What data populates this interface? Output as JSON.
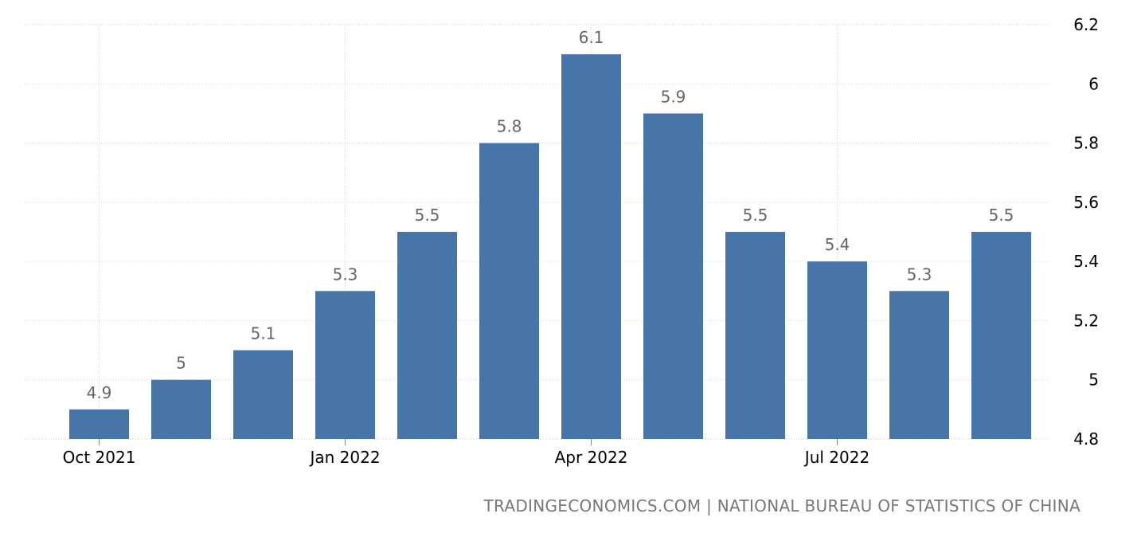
{
  "chart_data": {
    "type": "bar",
    "categories": [
      "Oct 2021",
      "Nov 2021",
      "Dec 2021",
      "Jan 2022",
      "Feb 2022",
      "Mar 2022",
      "Apr 2022",
      "May 2022",
      "Jun 2022",
      "Jul 2022",
      "Aug 2022",
      "Sep 2022"
    ],
    "values": [
      4.9,
      5.0,
      5.1,
      5.3,
      5.5,
      5.8,
      6.1,
      5.9,
      5.5,
      5.4,
      5.3,
      5.5
    ],
    "data_labels": [
      "4.9",
      "5",
      "5.1",
      "5.3",
      "5.5",
      "5.8",
      "6.1",
      "5.9",
      "5.5",
      "5.4",
      "5.3",
      "5.5"
    ],
    "x_tick_labels": [
      {
        "category": "Oct 2021",
        "label": "Oct 2021"
      },
      {
        "category": "Jan 2022",
        "label": "Jan 2022"
      },
      {
        "category": "Apr 2022",
        "label": "Apr 2022"
      },
      {
        "category": "Jul 2022",
        "label": "Jul 2022"
      }
    ],
    "y_ticks": [
      4.8,
      5.0,
      5.2,
      5.4,
      5.6,
      5.8,
      6.0,
      6.2
    ],
    "y_tick_labels": [
      "4.8",
      "5",
      "5.2",
      "5.4",
      "5.6",
      "5.8",
      "6",
      "6.2"
    ],
    "ylim": [
      4.8,
      6.2
    ],
    "y_axis_side": "right",
    "grid": true,
    "title": "",
    "xlabel": "",
    "ylabel": "",
    "colors": {
      "bar": "#4775aa",
      "data_label": "#666666",
      "tick_label": "#000000",
      "grid": "#d3d3d3",
      "source": "#777777"
    }
  },
  "source_text": "TRADINGECONOMICS.COM | NATIONAL BUREAU OF STATISTICS OF CHINA"
}
